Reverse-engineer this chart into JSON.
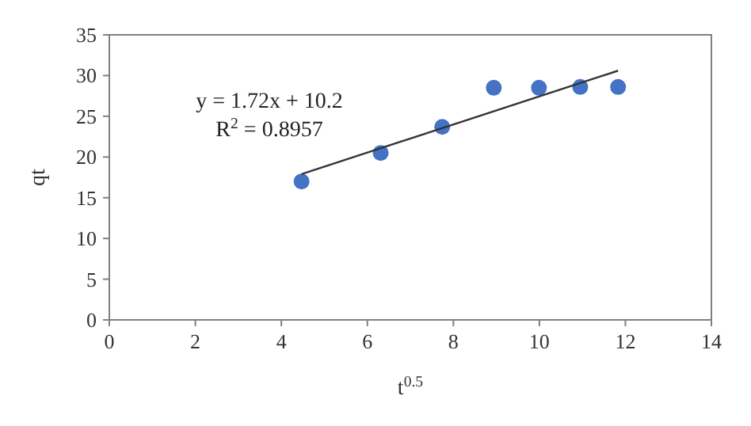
{
  "chart_data": {
    "type": "scatter",
    "xlabel": "t$^{0.5}$",
    "ylabel": "qt",
    "xlim": [
      0,
      14
    ],
    "ylim": [
      0,
      35
    ],
    "xticks": [
      0,
      2,
      4,
      6,
      8,
      10,
      12,
      14
    ],
    "yticks": [
      0,
      5,
      10,
      15,
      20,
      25,
      30,
      35
    ],
    "grid": false,
    "marker": "circle",
    "annotations": [
      "y = 1.72x + 10.2",
      "R$^{2}$ = 0.8957"
    ],
    "series": [
      {
        "color": "#4472c4",
        "x": [
          4.47,
          6.31,
          7.74,
          8.94,
          9.99,
          10.95,
          11.83
        ],
        "values": [
          17.0,
          20.5,
          23.7,
          28.5,
          28.5,
          28.6,
          28.6
        ]
      },
      {
        "type": "line",
        "color": "#333333",
        "x": [
          4.47,
          11.83
        ],
        "values": [
          17.9,
          30.6
        ],
        "marker": "none",
        "line_style": "solid"
      }
    ]
  }
}
